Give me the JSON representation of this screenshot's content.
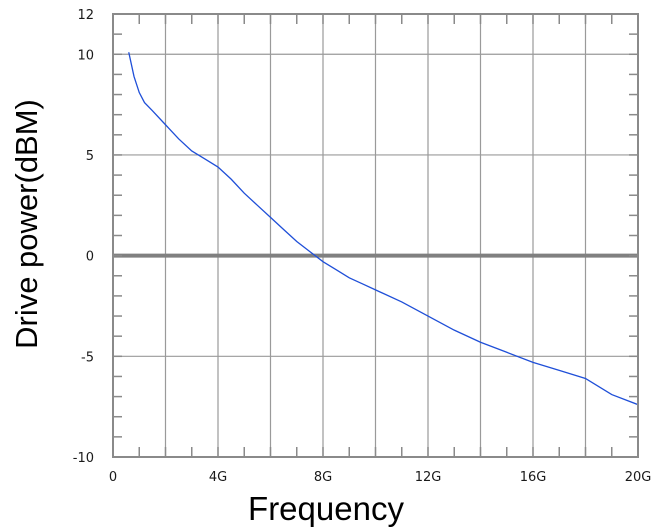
{
  "chart_data": {
    "type": "line",
    "title": "",
    "xlabel": "Frequency",
    "ylabel": "Drive power(dBM)",
    "xlim": [
      0,
      20
    ],
    "ylim": [
      -10,
      12
    ],
    "x_unit": "GHz",
    "x_tick_labels": [
      {
        "value": 0,
        "label": "0"
      },
      {
        "value": 4,
        "label": "4G"
      },
      {
        "value": 8,
        "label": "8G"
      },
      {
        "value": 12,
        "label": "12G"
      },
      {
        "value": 16,
        "label": "16G"
      },
      {
        "value": 20,
        "label": "20G"
      }
    ],
    "y_tick_labels": [
      {
        "value": -10,
        "label": "-10"
      },
      {
        "value": -5,
        "label": "-5"
      },
      {
        "value": 0,
        "label": "0"
      },
      {
        "value": 5,
        "label": "5"
      },
      {
        "value": 10,
        "label": "10"
      },
      {
        "value": 12,
        "label": "12"
      }
    ],
    "x_gridlines": [
      2,
      4,
      6,
      8,
      10,
      12,
      14,
      16,
      18
    ],
    "y_gridlines": [
      -9,
      -8,
      -7,
      -6,
      -5,
      -4,
      -3,
      -2,
      -1,
      0,
      1,
      2,
      3,
      4,
      5,
      6,
      7,
      8,
      9,
      10,
      11
    ],
    "grid": true,
    "minor_ticks": true,
    "reference_line_y": 0,
    "colors": {
      "series": "#1f4fd8",
      "grid": "#9a9a9a",
      "frame": "#8a8a8a",
      "zero_line": "#808080"
    },
    "series": [
      {
        "x": [
          0.6,
          0.8,
          1.0,
          1.2,
          1.5,
          2.0,
          2.5,
          3.0,
          3.5,
          4.0,
          4.5,
          5.0,
          5.5,
          6.0,
          6.5,
          7.0,
          7.5,
          8.0,
          8.5,
          9.0,
          9.5,
          10.0,
          11.0,
          12.0,
          13.0,
          14.0,
          15.0,
          16.0,
          17.0,
          18.0,
          19.0,
          20.0
        ],
        "y": [
          10.1,
          8.9,
          8.1,
          7.6,
          7.2,
          6.5,
          5.8,
          5.2,
          4.8,
          4.4,
          3.8,
          3.1,
          2.5,
          1.9,
          1.3,
          0.7,
          0.2,
          -0.3,
          -0.7,
          -1.1,
          -1.4,
          -1.7,
          -2.3,
          -3.0,
          -3.7,
          -4.3,
          -4.8,
          -5.3,
          -5.7,
          -6.1,
          -6.9,
          -7.4
        ]
      }
    ]
  }
}
